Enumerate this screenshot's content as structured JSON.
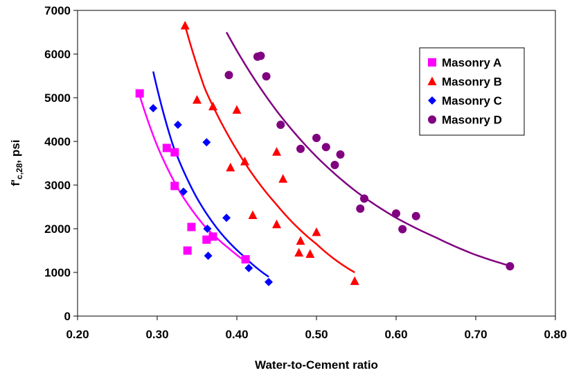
{
  "chart_data": {
    "type": "scatter",
    "title": "",
    "xlabel": "Water-to-Cement ratio",
    "ylabel_main": "f'",
    "ylabel_sub": "c,28",
    "ylabel_suffix": ", psi",
    "xlim": [
      0.2,
      0.8
    ],
    "ylim": [
      0,
      7000
    ],
    "x_ticks": [
      0.2,
      0.3,
      0.4,
      0.5,
      0.6,
      0.7,
      0.8
    ],
    "x_tick_labels": [
      "0.20",
      "0.30",
      "0.40",
      "0.50",
      "0.60",
      "0.70",
      "0.80"
    ],
    "y_ticks": [
      0,
      1000,
      2000,
      3000,
      4000,
      5000,
      6000,
      7000
    ],
    "y_tick_labels": [
      "0",
      "1000",
      "2000",
      "3000",
      "4000",
      "5000",
      "6000",
      "7000"
    ],
    "grid": false,
    "legend_position": "top-right",
    "series": [
      {
        "name": "Masonry A",
        "color": "#FF00FF",
        "marker": "square",
        "points": [
          [
            0.278,
            5100
          ],
          [
            0.312,
            3850
          ],
          [
            0.322,
            3750
          ],
          [
            0.322,
            2980
          ],
          [
            0.343,
            2040
          ],
          [
            0.338,
            1500
          ],
          [
            0.362,
            1750
          ],
          [
            0.37,
            1820
          ],
          [
            0.411,
            1300
          ]
        ],
        "trend": {
          "x_range": [
            0.278,
            0.411
          ],
          "y_at": [
            [
              0.278,
              5050
            ],
            [
              0.3,
              3900
            ],
            [
              0.33,
              2800
            ],
            [
              0.36,
              2050
            ],
            [
              0.39,
              1550
            ],
            [
              0.411,
              1250
            ]
          ]
        }
      },
      {
        "name": "Masonry B",
        "color": "#FF0000",
        "marker": "triangle",
        "points": [
          [
            0.335,
            6650
          ],
          [
            0.35,
            4950
          ],
          [
            0.37,
            4800
          ],
          [
            0.4,
            4720
          ],
          [
            0.41,
            3540
          ],
          [
            0.392,
            3400
          ],
          [
            0.45,
            3760
          ],
          [
            0.458,
            3140
          ],
          [
            0.42,
            2310
          ],
          [
            0.45,
            2100
          ],
          [
            0.5,
            1920
          ],
          [
            0.48,
            1720
          ],
          [
            0.478,
            1450
          ],
          [
            0.492,
            1420
          ],
          [
            0.548,
            800
          ]
        ],
        "trend": {
          "x_range": [
            0.335,
            0.548
          ],
          "y_at": [
            [
              0.335,
              6650
            ],
            [
              0.36,
              5200
            ],
            [
              0.4,
              3800
            ],
            [
              0.45,
              2550
            ],
            [
              0.5,
              1650
            ],
            [
              0.548,
              1000
            ]
          ]
        }
      },
      {
        "name": "Masonry C",
        "color": "#0000FF",
        "marker": "diamond",
        "points": [
          [
            0.295,
            4760
          ],
          [
            0.326,
            4380
          ],
          [
            0.362,
            3980
          ],
          [
            0.333,
            2850
          ],
          [
            0.387,
            2250
          ],
          [
            0.363,
            2000
          ],
          [
            0.364,
            1380
          ],
          [
            0.415,
            1100
          ],
          [
            0.44,
            780
          ]
        ],
        "trend": {
          "x_range": [
            0.295,
            0.44
          ],
          "y_at": [
            [
              0.295,
              5600
            ],
            [
              0.32,
              3900
            ],
            [
              0.35,
              2700
            ],
            [
              0.38,
              1900
            ],
            [
              0.41,
              1350
            ],
            [
              0.44,
              900
            ]
          ]
        }
      },
      {
        "name": "Masonry D",
        "color": "#800080",
        "marker": "circle",
        "points": [
          [
            0.39,
            5520
          ],
          [
            0.426,
            5940
          ],
          [
            0.43,
            5960
          ],
          [
            0.437,
            5490
          ],
          [
            0.455,
            4380
          ],
          [
            0.48,
            3830
          ],
          [
            0.5,
            4080
          ],
          [
            0.512,
            3870
          ],
          [
            0.53,
            3700
          ],
          [
            0.523,
            3460
          ],
          [
            0.56,
            2690
          ],
          [
            0.555,
            2460
          ],
          [
            0.6,
            2350
          ],
          [
            0.625,
            2290
          ],
          [
            0.608,
            1990
          ],
          [
            0.743,
            1140
          ]
        ],
        "trend": {
          "x_range": [
            0.387,
            0.743
          ],
          "y_at": [
            [
              0.387,
              6500
            ],
            [
              0.45,
              4700
            ],
            [
              0.5,
              3650
            ],
            [
              0.55,
              2850
            ],
            [
              0.6,
              2250
            ],
            [
              0.65,
              1800
            ],
            [
              0.7,
              1400
            ],
            [
              0.743,
              1150
            ]
          ]
        }
      }
    ]
  }
}
